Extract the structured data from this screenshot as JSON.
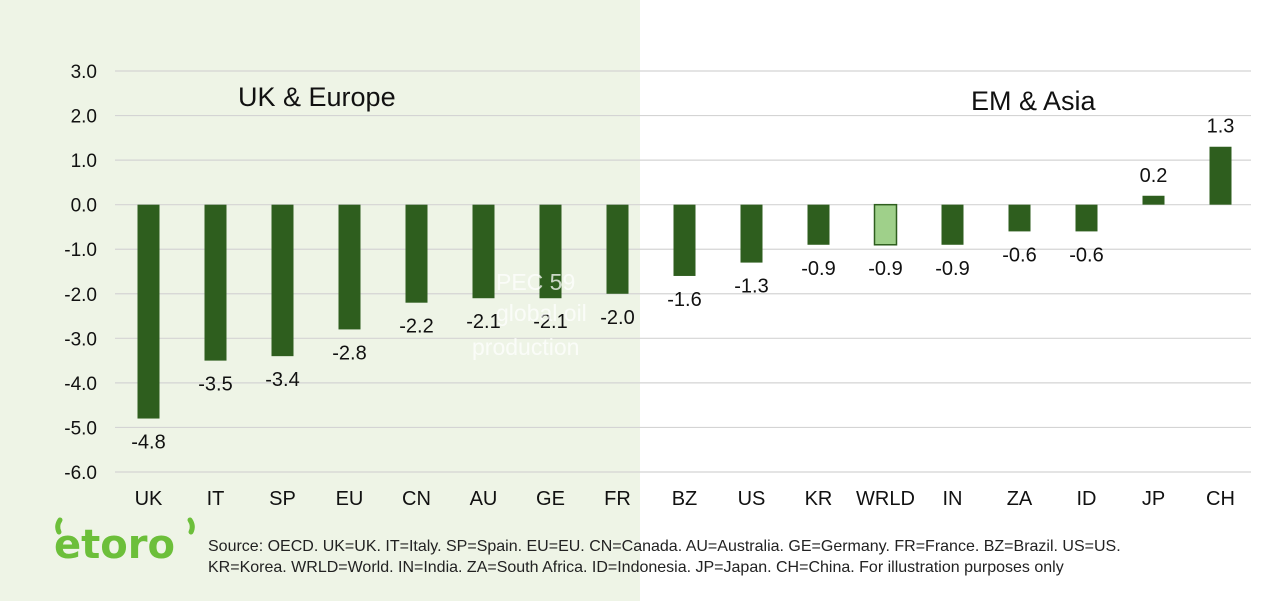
{
  "chart_data": {
    "type": "bar",
    "categories": [
      "UK",
      "IT",
      "SP",
      "EU",
      "CN",
      "AU",
      "GE",
      "FR",
      "BZ",
      "US",
      "KR",
      "WRLD",
      "IN",
      "ZA",
      "ID",
      "JP",
      "CH"
    ],
    "values": [
      -4.8,
      -3.5,
      -3.4,
      -2.8,
      -2.2,
      -2.1,
      -2.1,
      -2.0,
      -1.6,
      -1.3,
      -0.9,
      -0.9,
      -0.9,
      -0.6,
      -0.6,
      0.2,
      1.3
    ],
    "value_labels": [
      "-4.8",
      "-3.5",
      "-3.4",
      "-2.8",
      "-2.2",
      "-2.1",
      "-2.1",
      "-2.0",
      "-1.6",
      "-1.3",
      "-0.9",
      "-0.9",
      "-0.9",
      "-0.6",
      "-0.6",
      "0.2",
      "1.3"
    ],
    "highlight_category": "WRLD",
    "ylim": [
      -6.0,
      3.0
    ],
    "yticks": [
      "3.0",
      "2.0",
      "1.0",
      "0.0",
      "-1.0",
      "-2.0",
      "-3.0",
      "-4.0",
      "-5.0",
      "-6.0"
    ],
    "grid": true,
    "region_labels": [
      "UK & Europe",
      "EM & Asia"
    ],
    "watermark": [
      "PEC 59",
      "global oil",
      "production"
    ],
    "colors": {
      "bar": "#2e5e1e",
      "highlight": "#9fd08a",
      "panel": "#eef4e6",
      "grid": "#d4d4d4"
    }
  },
  "source_note": {
    "line1": "Source: OECD. UK=UK. IT=Italy. SP=Spain. EU=EU. CN=Canada. AU=Australia. GE=Germany. FR=France. BZ=Brazil. US=US.",
    "line2": "KR=Korea. WRLD=World. IN=India. ZA=South Africa. ID=Indonesia. JP=Japan. CH=China. For illustration purposes only"
  },
  "logo": {
    "text": "etoro",
    "color": "#6cbf3a"
  }
}
